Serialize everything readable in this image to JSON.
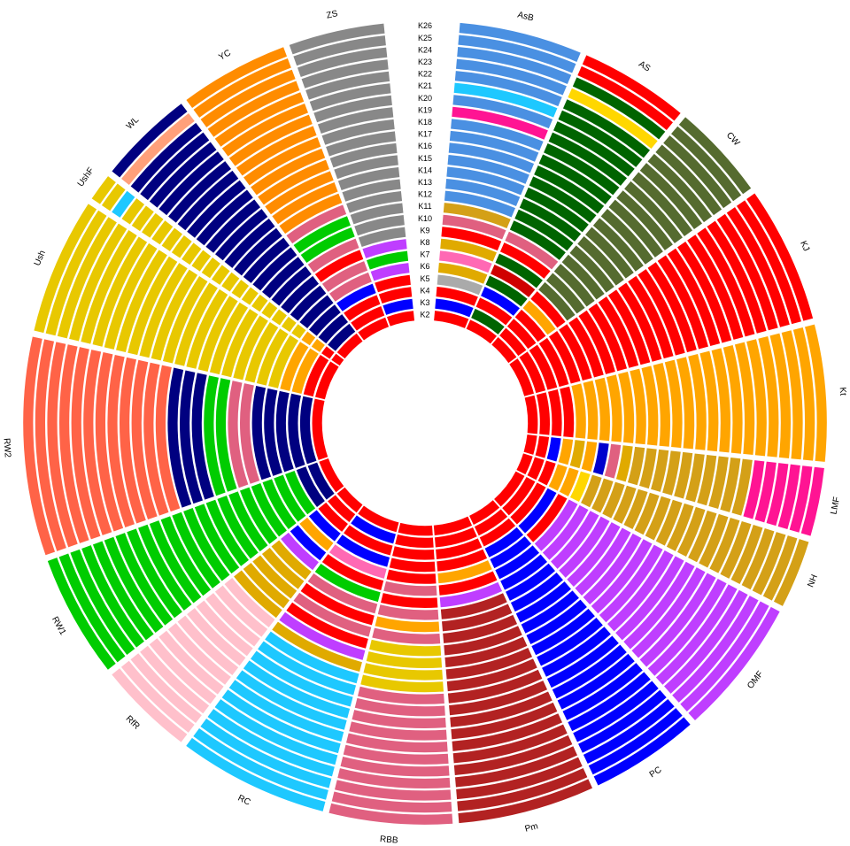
{
  "chart_data": {
    "type": "circular-admixture",
    "k_levels": [
      "K2",
      "K3",
      "K4",
      "K5",
      "K6",
      "K7",
      "K8",
      "K9",
      "K10",
      "K11",
      "K12",
      "K13",
      "K14",
      "K15",
      "K16",
      "K17",
      "K18",
      "K19",
      "K20",
      "K21",
      "K22",
      "K23",
      "K24",
      "K25",
      "K26"
    ],
    "populations": [
      {
        "label": "AsB",
        "n": 18,
        "colors": [
          "#e8c547",
          "#1fa9e8",
          "#e8e0a0"
        ],
        "k_colors": [
          "#ff0000",
          "#0000ff",
          "#ff0000",
          "#aaaaaa",
          "#e0aa00",
          "#ff69b4",
          "#e0aa00",
          "#ff0000",
          "#e06080",
          "#d4a017",
          "#4a90e2",
          "#4a90e2",
          "#4a90e2",
          "#4a90e2",
          "#4a90e2",
          "#4a90e2",
          "#4a90e2",
          "#ff1493",
          "#4a90e2",
          "#1ec8ff",
          "#4a90e2",
          "#4a90e2",
          "#4a90e2",
          "#4a90e2",
          "#4a90e2"
        ]
      },
      {
        "label": "AS",
        "n": 16,
        "k_colors": [
          "#ff0000",
          "#006400",
          "#ff0000",
          "#0000ff",
          "#006400",
          "#d00000",
          "#006400",
          "#ff0000",
          "#e06080",
          "#006400",
          "#006400",
          "#006400",
          "#006400",
          "#006400",
          "#006400",
          "#006400",
          "#006400",
          "#006400",
          "#006400",
          "#006400",
          "#006400",
          "#ffd700",
          "#006400",
          "#ff0000",
          "#ff0000"
        ]
      },
      {
        "label": "CW",
        "n": 14,
        "k_colors": [
          "#ff0000",
          "#ff0000",
          "#ff0000",
          "#ff0000",
          "#ffa500",
          "#ff0000",
          "#556b2f",
          "#556b2f",
          "#556b2f",
          "#556b2f",
          "#556b2f",
          "#556b2f",
          "#556b2f",
          "#556b2f",
          "#556b2f",
          "#556b2f",
          "#556b2f",
          "#556b2f",
          "#556b2f",
          "#556b2f",
          "#556b2f",
          "#556b2f",
          "#556b2f",
          "#556b2f",
          "#556b2f"
        ]
      },
      {
        "label": "KJ",
        "n": 20,
        "k_colors": [
          "#ff0000",
          "#ff0000",
          "#ff0000",
          "#ff0000",
          "#ff0000",
          "#ff0000",
          "#ff0000",
          "#ff0000",
          "#ff0000",
          "#ff0000",
          "#ff0000",
          "#ff0000",
          "#ff0000",
          "#ff0000",
          "#ff0000",
          "#ff0000",
          "#ff0000",
          "#ff0000",
          "#ff0000",
          "#ff0000",
          "#ff0000",
          "#ff0000",
          "#ff0000",
          "#ff0000",
          "#ff0000"
        ]
      },
      {
        "label": "Kt",
        "n": 20,
        "k_colors": [
          "#ff0000",
          "#ff0000",
          "#ff0000",
          "#ff0000",
          "#ffa500",
          "#ffa500",
          "#ffa500",
          "#ffa500",
          "#ffa500",
          "#ffa500",
          "#ffa500",
          "#ffa500",
          "#ffa500",
          "#ffa500",
          "#ffa500",
          "#ffa500",
          "#ffa500",
          "#ffa500",
          "#ffa500",
          "#ffa500",
          "#ffa500",
          "#ffa500",
          "#ffa500",
          "#ffa500",
          "#ffa500"
        ]
      },
      {
        "label": "LMF",
        "n": 10,
        "k_colors": [
          "#ff0000",
          "#ff0000",
          "#0000ff",
          "#ffa500",
          "#e0aa00",
          "#ffa500",
          "#0000cd",
          "#e06080",
          "#e0aa00",
          "#d4a017",
          "#d4a017",
          "#d4a017",
          "#d4a017",
          "#d4a017",
          "#d4a017",
          "#d4a017",
          "#d4a017",
          "#d4a017",
          "#d4a017",
          "#ff1493",
          "#ff1493",
          "#ff1493",
          "#ff1493",
          "#ff1493",
          "#ff1493"
        ]
      },
      {
        "label": "NH",
        "n": 10,
        "k_colors": [
          "#ff0000",
          "#ff0000",
          "#ff0000",
          "#ffa500",
          "#ffa500",
          "#ffd700",
          "#d4a017",
          "#d4a017",
          "#d4a017",
          "#d4a017",
          "#d4a017",
          "#d4a017",
          "#d4a017",
          "#d4a017",
          "#d4a017",
          "#d4a017",
          "#d4a017",
          "#d4a017",
          "#d4a017",
          "#d4a017",
          "#d4a017",
          "#d4a017",
          "#d4a017",
          "#d4a017",
          "#d4a017"
        ]
      },
      {
        "label": "OMF",
        "n": 20,
        "k_colors": [
          "#ff0000",
          "#ff0000",
          "#ff0000",
          "#0000ff",
          "#ff0000",
          "#bf3eff",
          "#bf3eff",
          "#bf3eff",
          "#bf3eff",
          "#bf3eff",
          "#bf3eff",
          "#bf3eff",
          "#bf3eff",
          "#bf3eff",
          "#bf3eff",
          "#bf3eff",
          "#bf3eff",
          "#bf3eff",
          "#bf3eff",
          "#bf3eff",
          "#bf3eff",
          "#bf3eff",
          "#bf3eff",
          "#bf3eff",
          "#bf3eff"
        ]
      },
      {
        "label": "PC",
        "n": 16,
        "k_colors": [
          "#ff0000",
          "#ff0000",
          "#ff0000",
          "#0000ff",
          "#0000ff",
          "#0000ff",
          "#0000ff",
          "#0000ff",
          "#0000ff",
          "#0000ff",
          "#0000ff",
          "#0000ff",
          "#0000ff",
          "#0000ff",
          "#0000ff",
          "#0000ff",
          "#0000ff",
          "#0000ff",
          "#0000ff",
          "#0000ff",
          "#0000ff",
          "#0000ff",
          "#0000ff",
          "#0000ff",
          "#0000ff"
        ]
      },
      {
        "label": "Pm",
        "n": 20,
        "k_colors": [
          "#ff0000",
          "#ff0000",
          "#ff0000",
          "#ff0000",
          "#ffa500",
          "#ff0000",
          "#bf3eff",
          "#b22222",
          "#b22222",
          "#b22222",
          "#b22222",
          "#b22222",
          "#b22222",
          "#b22222",
          "#b22222",
          "#b22222",
          "#b22222",
          "#b22222",
          "#b22222",
          "#b22222",
          "#b22222",
          "#b22222",
          "#b22222",
          "#b22222",
          "#b22222"
        ]
      },
      {
        "label": "RBB",
        "n": 18,
        "k_colors": [
          "#ff0000",
          "#ff0000",
          "#ff0000",
          "#ff0000",
          "#ff0000",
          "#e06080",
          "#ff0000",
          "#e06080",
          "#ffa500",
          "#e06080",
          "#e8c800",
          "#e8c800",
          "#e8c800",
          "#e8c800",
          "#e06080",
          "#e06080",
          "#e06080",
          "#e06080",
          "#e06080",
          "#e06080",
          "#e06080",
          "#e06080",
          "#e06080",
          "#e06080",
          "#e06080"
        ]
      },
      {
        "label": "RC",
        "n": 22,
        "k_colors": [
          "#ff0000",
          "#0000ff",
          "#ff0000",
          "#0000ff",
          "#ff69b4",
          "#ff0000",
          "#00cc00",
          "#e06080",
          "#ff0000",
          "#e06080",
          "#ff0000",
          "#bf3eff",
          "#e0aa00",
          "#1ec8ff",
          "#1ec8ff",
          "#1ec8ff",
          "#1ec8ff",
          "#1ec8ff",
          "#1ec8ff",
          "#1ec8ff",
          "#1ec8ff",
          "#1ec8ff",
          "#1ec8ff",
          "#1ec8ff",
          "#1ec8ff"
        ]
      },
      {
        "label": "RfR",
        "n": 14,
        "k_colors": [
          "#ff0000",
          "#ff0000",
          "#ff0000",
          "#0000ff",
          "#ffa500",
          "#0000ff",
          "#bf3eff",
          "#e0aa00",
          "#e0aa00",
          "#e0aa00",
          "#e0aa00",
          "#e0aa00",
          "#ffc0cb",
          "#ffc0cb",
          "#ffc0cb",
          "#ffc0cb",
          "#ffc0cb",
          "#ffc0cb",
          "#ffc0cb",
          "#ffc0cb",
          "#ffc0cb",
          "#ffc0cb",
          "#ffc0cb",
          "#ffc0cb",
          "#ffc0cb"
        ]
      },
      {
        "label": "RW1",
        "n": 18,
        "k_colors": [
          "#ff0000",
          "#000080",
          "#000080",
          "#00cc00",
          "#00cc00",
          "#00cc00",
          "#00cc00",
          "#00cc00",
          "#00cc00",
          "#00cc00",
          "#00cc00",
          "#00cc00",
          "#00cc00",
          "#00cc00",
          "#00cc00",
          "#00cc00",
          "#00cc00",
          "#00cc00",
          "#00cc00",
          "#00cc00",
          "#00cc00",
          "#00cc00",
          "#00cc00",
          "#00cc00",
          "#00cc00"
        ]
      },
      {
        "label": "RW2",
        "n": 32,
        "k_colors": [
          "#ff0000",
          "#000080",
          "#000080",
          "#000080",
          "#000080",
          "#000080",
          "#e06080",
          "#e06080",
          "#00cc00",
          "#00cc00",
          "#000080",
          "#000080",
          "#000080",
          "#ff6347",
          "#ff6347",
          "#ff6347",
          "#ff6347",
          "#ff6347",
          "#ff6347",
          "#ff6347",
          "#ff6347",
          "#ff6347",
          "#ff6347",
          "#ff6347",
          "#ff6347"
        ]
      },
      {
        "label": "Ush",
        "n": 20,
        "k_colors": [
          "#ff0000",
          "#ff0000",
          "#ffa500",
          "#ffa500",
          "#e8c800",
          "#e8c800",
          "#e8c800",
          "#e8c800",
          "#e8c800",
          "#e8c800",
          "#e8c800",
          "#e8c800",
          "#e8c800",
          "#e8c800",
          "#e8c800",
          "#e8c800",
          "#e8c800",
          "#e8c800",
          "#e8c800",
          "#e8c800",
          "#e8c800",
          "#e8c800",
          "#e8c800",
          "#e8c800",
          "#e8c800"
        ]
      },
      {
        "label": "UshF",
        "n": 4,
        "k_colors": [
          "#ff0000",
          "#ff0000",
          "#ffa500",
          "#ffa500",
          "#e8c800",
          "#e8c800",
          "#e8c800",
          "#e8c800",
          "#e8c800",
          "#e8c800",
          "#e8c800",
          "#e8c800",
          "#e8c800",
          "#e8c800",
          "#e8c800",
          "#e8c800",
          "#e8c800",
          "#e8c800",
          "#e8c800",
          "#e8c800",
          "#e8c800",
          "#e8c800",
          "#1ec8ff",
          "#e8c800",
          "#e8c800"
        ]
      },
      {
        "label": "WL",
        "n": 14,
        "k_colors": [
          "#ff0000",
          "#000080",
          "#000080",
          "#000080",
          "#000080",
          "#000080",
          "#000080",
          "#000080",
          "#000080",
          "#000080",
          "#000080",
          "#000080",
          "#000080",
          "#000080",
          "#000080",
          "#000080",
          "#000080",
          "#000080",
          "#000080",
          "#000080",
          "#000080",
          "#000080",
          "#000080",
          "#ffa07a",
          "#000080"
        ]
      },
      {
        "label": "YC",
        "n": 16,
        "k_colors": [
          "#ff0000",
          "#ff0000",
          "#ff0000",
          "#0000ff",
          "#e06080",
          "#e06080",
          "#ff0000",
          "#e06080",
          "#00cc00",
          "#00cc00",
          "#e06080",
          "#ff8c00",
          "#ff8c00",
          "#ff8c00",
          "#ff8c00",
          "#ff8c00",
          "#ff8c00",
          "#ff8c00",
          "#ff8c00",
          "#ff8c00",
          "#ff8c00",
          "#ff8c00",
          "#ff8c00",
          "#ff8c00",
          "#ff8c00"
        ]
      },
      {
        "label": "ZS",
        "n": 14,
        "k_colors": [
          "#ff0000",
          "#0000ff",
          "#ff0000",
          "#ff0000",
          "#bf3eff",
          "#00cc00",
          "#bf3eff",
          "#888888",
          "#888888",
          "#888888",
          "#888888",
          "#888888",
          "#888888",
          "#888888",
          "#888888",
          "#888888",
          "#888888",
          "#888888",
          "#888888",
          "#888888",
          "#888888",
          "#888888",
          "#888888",
          "#888888",
          "#888888"
        ]
      }
    ],
    "gap_between_rings": true,
    "label_gap_at_top": true
  }
}
